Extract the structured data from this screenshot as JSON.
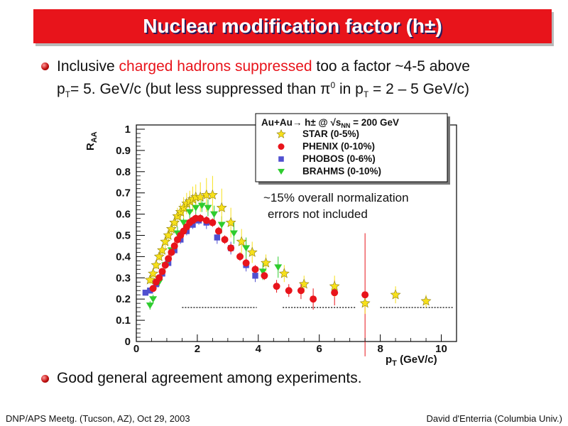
{
  "slide": {
    "title": "Nuclear modification factor (h±)",
    "bullets": [
      {
        "pre": "Inclusive ",
        "highlight": "charged hadrons suppressed",
        "post": " too a factor ~4-5 above",
        "line2": {
          "p1": "p",
          "s1": "T",
          "p2": "= 5. GeV/c (but less suppressed than π",
          "s2": "0",
          "p3": " in p",
          "s3": "T",
          "p4": " = 2 – 5 GeV/c)"
        }
      },
      {
        "text": "Good general agreement among experiments."
      }
    ],
    "footer_left": "DNP/APS Meetg. (Tucson, AZ), Oct 29, 2003",
    "footer_right": "David d'Enterria (Columbia Univ.)"
  },
  "chart_data": {
    "type": "scatter",
    "ylabel": "R",
    "ylabel_sub": "AA",
    "xlabel": "p",
    "xlabel_sub": "T",
    "xlabel_unit": " (GeV/c)",
    "xlim": [
      0,
      10.5
    ],
    "ylim": [
      0,
      1.02
    ],
    "xticks": [
      0,
      2,
      4,
      6,
      8,
      10
    ],
    "yticks": [
      0,
      0.1,
      0.2,
      0.3,
      0.4,
      0.5,
      0.6,
      0.7,
      0.8,
      0.9,
      1
    ],
    "legend": {
      "position": "top-right",
      "header_pre": "Au+Au",
      "header_arrow": "→",
      "header_mid": " h± @ ",
      "header_root": "√",
      "header_s": "s",
      "header_sub": "NN",
      "header_post": " = 200 GeV"
    },
    "annotation": [
      "~15% overall normalization",
      "errors not included"
    ],
    "series": [
      {
        "name": "STAR (0-5%)",
        "marker": "star",
        "color": "#f7e01a",
        "points": [
          [
            0.45,
            0.29,
            0.02
          ],
          [
            0.55,
            0.32,
            0.02
          ],
          [
            0.65,
            0.36,
            0.02
          ],
          [
            0.75,
            0.4,
            0.02
          ],
          [
            0.85,
            0.43,
            0.03
          ],
          [
            0.95,
            0.47,
            0.03
          ],
          [
            1.05,
            0.5,
            0.03
          ],
          [
            1.15,
            0.53,
            0.03
          ],
          [
            1.25,
            0.56,
            0.04
          ],
          [
            1.35,
            0.59,
            0.04
          ],
          [
            1.45,
            0.61,
            0.04
          ],
          [
            1.55,
            0.63,
            0.05
          ],
          [
            1.65,
            0.65,
            0.05
          ],
          [
            1.75,
            0.66,
            0.05
          ],
          [
            1.85,
            0.67,
            0.06
          ],
          [
            1.95,
            0.68,
            0.06
          ],
          [
            2.1,
            0.68,
            0.07
          ],
          [
            2.3,
            0.69,
            0.08
          ],
          [
            2.5,
            0.69,
            0.09
          ],
          [
            2.8,
            0.63,
            0.09
          ],
          [
            3.1,
            0.56,
            0.07
          ],
          [
            3.45,
            0.47,
            0.06
          ],
          [
            3.8,
            0.42,
            0.05
          ],
          [
            4.25,
            0.37,
            0.04
          ],
          [
            4.85,
            0.32,
            0.04
          ],
          [
            5.5,
            0.27,
            0.04
          ],
          [
            6.5,
            0.26,
            0.05
          ],
          [
            7.5,
            0.18,
            0.05
          ],
          [
            8.5,
            0.22,
            0.04
          ],
          [
            9.5,
            0.19,
            0.03
          ]
        ]
      },
      {
        "name": "PHENIX (0-10%)",
        "marker": "circle",
        "color": "#e8141b",
        "points": [
          [
            0.55,
            0.25,
            0.01
          ],
          [
            0.65,
            0.28,
            0.01
          ],
          [
            0.75,
            0.3,
            0.01
          ],
          [
            0.85,
            0.33,
            0.01
          ],
          [
            0.95,
            0.36,
            0.01
          ],
          [
            1.05,
            0.39,
            0.02
          ],
          [
            1.15,
            0.42,
            0.02
          ],
          [
            1.25,
            0.45,
            0.02
          ],
          [
            1.35,
            0.48,
            0.02
          ],
          [
            1.45,
            0.5,
            0.02
          ],
          [
            1.55,
            0.52,
            0.02
          ],
          [
            1.65,
            0.54,
            0.02
          ],
          [
            1.75,
            0.56,
            0.02
          ],
          [
            1.85,
            0.57,
            0.02
          ],
          [
            1.95,
            0.58,
            0.02
          ],
          [
            2.1,
            0.58,
            0.02
          ],
          [
            2.3,
            0.57,
            0.02
          ],
          [
            2.5,
            0.56,
            0.02
          ],
          [
            2.7,
            0.52,
            0.02
          ],
          [
            2.9,
            0.48,
            0.02
          ],
          [
            3.1,
            0.44,
            0.02
          ],
          [
            3.4,
            0.4,
            0.02
          ],
          [
            3.6,
            0.37,
            0.02
          ],
          [
            3.9,
            0.34,
            0.02
          ],
          [
            4.2,
            0.31,
            0.02
          ],
          [
            4.6,
            0.26,
            0.03
          ],
          [
            5.0,
            0.24,
            0.03
          ],
          [
            5.4,
            0.24,
            0.04
          ],
          [
            5.8,
            0.2,
            0.05
          ],
          [
            6.5,
            0.23,
            0.06
          ],
          [
            7.5,
            0.22,
            0.29
          ]
        ]
      },
      {
        "name": "PHOBOS (0-6%)",
        "marker": "square",
        "color": "#5050d0",
        "points": [
          [
            0.3,
            0.23,
            0.01
          ],
          [
            0.45,
            0.24,
            0.01
          ],
          [
            0.65,
            0.27,
            0.01
          ],
          [
            0.85,
            0.32,
            0.01
          ],
          [
            1.05,
            0.37,
            0.01
          ],
          [
            1.25,
            0.43,
            0.02
          ],
          [
            1.45,
            0.48,
            0.02
          ],
          [
            1.65,
            0.52,
            0.02
          ],
          [
            1.85,
            0.55,
            0.02
          ],
          [
            2.05,
            0.57,
            0.02
          ],
          [
            2.3,
            0.56,
            0.03
          ],
          [
            2.65,
            0.49,
            0.03
          ],
          [
            3.1,
            0.44,
            0.03
          ],
          [
            3.6,
            0.36,
            0.03
          ],
          [
            3.9,
            0.31,
            0.03
          ]
        ]
      },
      {
        "name": "BRAHMS (0-10%)",
        "marker": "triangle",
        "color": "#2ecc2e",
        "points": [
          [
            0.45,
            0.17,
            0.02
          ],
          [
            0.55,
            0.2,
            0.02
          ],
          [
            0.75,
            0.28,
            0.02
          ],
          [
            0.95,
            0.36,
            0.02
          ],
          [
            1.15,
            0.43,
            0.02
          ],
          [
            1.35,
            0.51,
            0.03
          ],
          [
            1.55,
            0.56,
            0.03
          ],
          [
            1.75,
            0.61,
            0.03
          ],
          [
            1.95,
            0.63,
            0.03
          ],
          [
            2.15,
            0.64,
            0.03
          ],
          [
            2.35,
            0.63,
            0.04
          ],
          [
            2.55,
            0.6,
            0.04
          ],
          [
            2.8,
            0.55,
            0.04
          ],
          [
            3.2,
            0.51,
            0.05
          ],
          [
            3.6,
            0.44,
            0.05
          ],
          [
            4.15,
            0.33,
            0.04
          ],
          [
            4.65,
            0.35,
            0.05
          ]
        ]
      }
    ],
    "reference_dashes": [
      {
        "x0": 1.5,
        "x1": 3.95,
        "y": 0.16
      },
      {
        "x0": 4.8,
        "x1": 7.2,
        "y": 0.16
      },
      {
        "x0": 8.0,
        "x1": 10.5,
        "y": 0.16
      }
    ]
  }
}
